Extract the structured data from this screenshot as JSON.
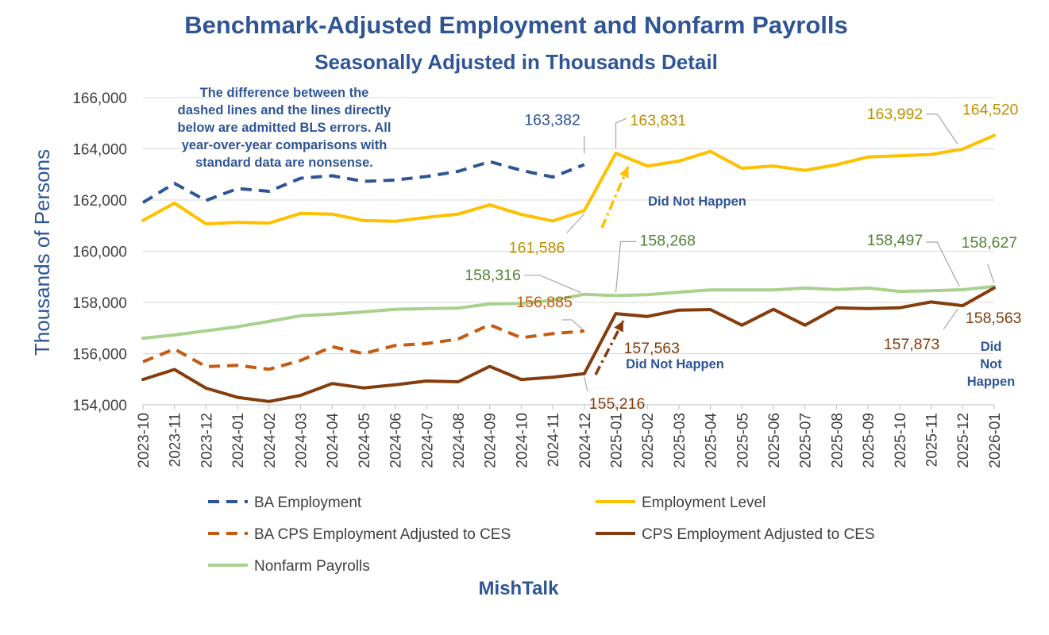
{
  "colors": {
    "title": "#2F5597",
    "ba_employment": "#2F5597",
    "employment_level": "#FFC000",
    "ba_cps": "#C55A11",
    "cps": "#843C0C",
    "nonfarm": "#A9D18E",
    "gridline": "#D9D9D9",
    "axis_text": "#404040",
    "label_gold": "#BF9000",
    "label_green": "#548235",
    "label_orange": "#C55A11",
    "label_brown": "#843C0C"
  },
  "brand": "MishTalk",
  "annotations": {
    "note_lines": [
      "The difference between the",
      "dashed lines and the lines directly",
      "below are admitted BLS errors. All",
      "year-over-year comparisons with",
      "standard data are nonsense."
    ],
    "did_not_happen_upper": "Did Not Happen",
    "did_not_happen_lower": "Did Not Happen",
    "did_not_happen_right": [
      "Did",
      "Not",
      "Happen"
    ]
  },
  "chart_data": {
    "type": "line",
    "title": "Benchmark-Adjusted Employment and Nonfarm Payrolls",
    "subtitle": "Seasonally Adjusted in Thousands Detail",
    "xlabel": "",
    "ylabel": "Thousands of Persons",
    "ylim": [
      154000,
      166000
    ],
    "yticks": [
      154000,
      156000,
      158000,
      160000,
      162000,
      164000,
      166000
    ],
    "ytick_labels": [
      "154,000",
      "156,000",
      "158,000",
      "160,000",
      "162,000",
      "164,000",
      "166,000"
    ],
    "grid": true,
    "legend_position": "bottom",
    "categories": [
      "2023-10",
      "2023-11",
      "2023-12",
      "2024-01",
      "2024-02",
      "2024-03",
      "2024-04",
      "2024-05",
      "2024-06",
      "2024-07",
      "2024-08",
      "2024-09",
      "2024-10",
      "2024-11",
      "2024-12",
      "2025-01",
      "2025-02",
      "2025-03",
      "2025-04",
      "2025-05",
      "2025-06",
      "2025-07",
      "2025-08",
      "2025-09",
      "2025-10",
      "2025-11",
      "2025-12",
      "2026-01"
    ],
    "series": [
      {
        "name": "BA Employment",
        "style": "dashed",
        "values": [
          161900,
          162650,
          161980,
          162450,
          162340,
          162850,
          162950,
          162730,
          162780,
          162920,
          163120,
          163500,
          163160,
          162900,
          163382,
          null,
          null,
          null,
          null,
          null,
          null,
          null,
          null,
          null,
          null,
          null,
          null,
          null
        ]
      },
      {
        "name": "Employment Level",
        "style": "solid",
        "values": [
          161200,
          161880,
          161070,
          161130,
          161100,
          161480,
          161450,
          161200,
          161170,
          161320,
          161450,
          161810,
          161440,
          161180,
          161586,
          163831,
          163330,
          163520,
          163900,
          163240,
          163330,
          163160,
          163380,
          163680,
          163730,
          163780,
          163992,
          164520
        ]
      },
      {
        "name": "BA CPS Employment Adjusted to CES",
        "style": "dashed",
        "values": [
          155680,
          156180,
          155490,
          155540,
          155390,
          155730,
          156270,
          156000,
          156320,
          156390,
          156570,
          157130,
          156620,
          156780,
          156885,
          null,
          null,
          null,
          null,
          null,
          null,
          null,
          null,
          null,
          null,
          null,
          null,
          null
        ]
      },
      {
        "name": "CPS Employment Adjusted to CES",
        "style": "solid",
        "values": [
          154990,
          155380,
          154650,
          154290,
          154130,
          154370,
          154830,
          154660,
          154780,
          154930,
          154900,
          155500,
          154990,
          155080,
          155216,
          157563,
          157450,
          157700,
          157720,
          157110,
          157730,
          157110,
          157790,
          157760,
          157790,
          158020,
          157873,
          158563
        ]
      },
      {
        "name": "Nonfarm Payrolls",
        "style": "solid",
        "values": [
          156600,
          156730,
          156890,
          157050,
          157260,
          157480,
          157540,
          157630,
          157730,
          157760,
          157780,
          157940,
          157960,
          158080,
          158316,
          158268,
          158300,
          158400,
          158490,
          158490,
          158490,
          158560,
          158500,
          158560,
          158430,
          158460,
          158497,
          158627
        ]
      }
    ],
    "data_labels": [
      {
        "series": "BA Employment",
        "category": "2024-12",
        "text": "163,382"
      },
      {
        "series": "Employment Level",
        "category": "2025-01",
        "text": "163,831"
      },
      {
        "series": "Employment Level",
        "category": "2025-12",
        "text": "163,992"
      },
      {
        "series": "Employment Level",
        "category": "2026-01",
        "text": "164,520"
      },
      {
        "series": "Employment Level",
        "category": "2024-12",
        "text": "161,586"
      },
      {
        "series": "Nonfarm Payrolls",
        "category": "2024-12",
        "text": "158,316"
      },
      {
        "series": "Nonfarm Payrolls",
        "category": "2025-01",
        "text": "158,268"
      },
      {
        "series": "Nonfarm Payrolls",
        "category": "2025-12",
        "text": "158,497"
      },
      {
        "series": "Nonfarm Payrolls",
        "category": "2026-01",
        "text": "158,627"
      },
      {
        "series": "BA CPS Employment Adjusted to CES",
        "category": "2024-12",
        "text": "156,885"
      },
      {
        "series": "CPS Employment Adjusted to CES",
        "category": "2025-01",
        "text": "157,563"
      },
      {
        "series": "CPS Employment Adjusted to CES",
        "category": "2024-12",
        "text": "155,216"
      },
      {
        "series": "CPS Employment Adjusted to CES",
        "category": "2025-12",
        "text": "157,873"
      },
      {
        "series": "CPS Employment Adjusted to CES",
        "category": "2026-01",
        "text": "158,563"
      }
    ]
  }
}
